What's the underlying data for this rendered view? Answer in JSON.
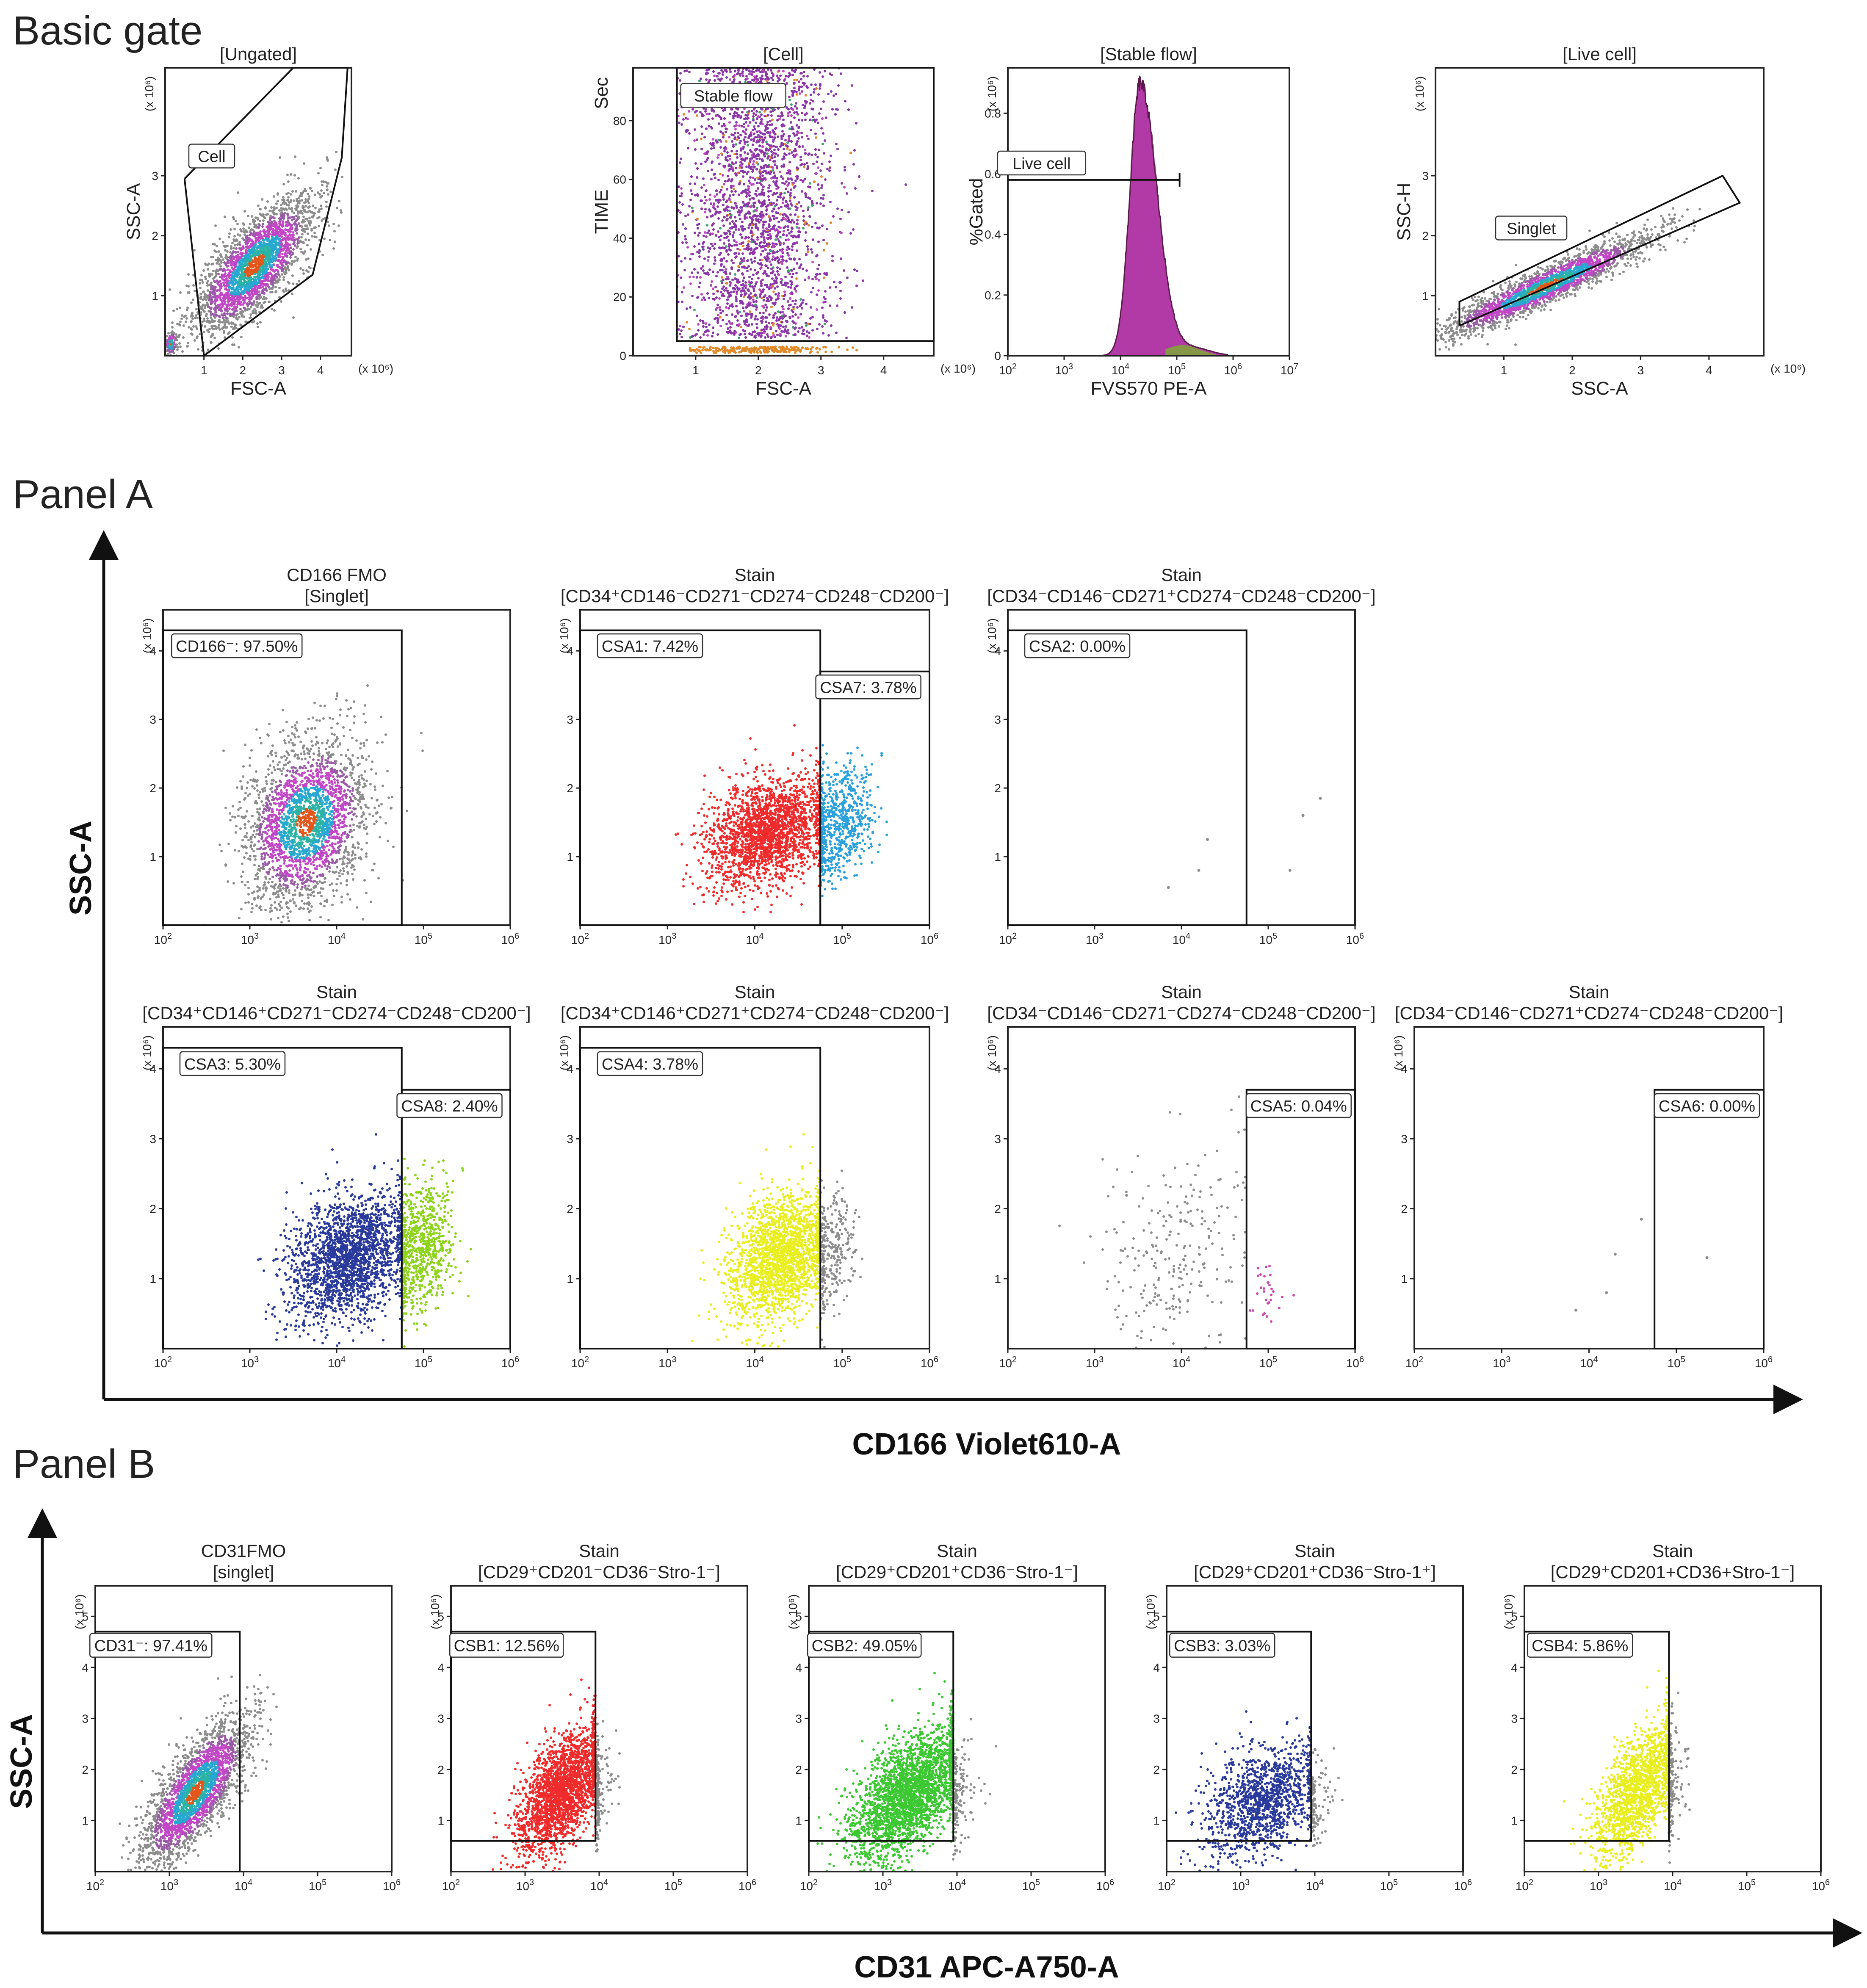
{
  "sections": {
    "basic": "Basic gate",
    "panelA": "Panel A",
    "panelB": "Panel B"
  },
  "axis_labels": {
    "panelA_x": "CD166 Violet610-A",
    "panelA_y": "SSC-A",
    "panelB_x": "CD31 APC-A750-A",
    "panelB_y": "SSC-A"
  },
  "colors": {
    "gray": "#8c8c8c",
    "magenta": "#b13cc0",
    "teal": "#1aa7a0",
    "green": "#40c040",
    "orange": "#e0892a",
    "red": "#f02b2b",
    "blue": "#2aa0dc",
    "navy": "#2a3a9c",
    "lime": "#8cd31a",
    "yellow": "#e9ee1e",
    "pink": "#d045b0",
    "bgreen": "#3cc832",
    "purple": "#8a35a8"
  },
  "chart_data": [
    {
      "id": "ungated",
      "type": "scatter",
      "title": [
        "[Ungated]"
      ],
      "xlabel": "FSC-A",
      "ylabel": "SSC-A",
      "x_scale": "linear",
      "xlim": [
        0,
        4.8
      ],
      "ylim": [
        0,
        4.8
      ],
      "xticks": [
        1,
        2,
        3,
        4
      ],
      "yticks": [
        1,
        2,
        3
      ],
      "xmult": "(x 10⁶)",
      "ymult": "(x 10⁶)",
      "clouds": [
        {
          "cx": 2.3,
          "cy": 1.5,
          "sx": 0.75,
          "sy": 0.55,
          "rho": 0.72,
          "n": 2600,
          "palette": "density"
        },
        {
          "cx": 0.15,
          "cy": 0.2,
          "sx": 0.08,
          "sy": 0.1,
          "rho": 0.2,
          "n": 140,
          "palette": "density"
        }
      ],
      "gates": [
        {
          "kind": "polygon",
          "points": [
            [
              0.5,
              2.95
            ],
            [
              3.3,
              4.8
            ],
            [
              4.7,
              4.8
            ],
            [
              4.55,
              3.3
            ],
            [
              3.8,
              1.35
            ],
            [
              1.0,
              0.0
            ],
            [
              0.5,
              2.95
            ]
          ],
          "label": "Cell",
          "label_at": [
            1.2,
            3.3
          ]
        }
      ]
    },
    {
      "id": "cell",
      "type": "scatter",
      "title": [
        "[Cell]"
      ],
      "xlabel": "FSC-A",
      "ylabel": "TIME",
      "ylabel_unit": "Sec",
      "x_scale": "linear",
      "xlim": [
        0,
        4.8
      ],
      "ylim": [
        0,
        98
      ],
      "xticks": [
        1,
        2,
        3,
        4
      ],
      "yticks": [
        0,
        20,
        40,
        60,
        80
      ],
      "xmult": "(x 10⁶)",
      "clouds": [
        {
          "kind": "band",
          "x0": 0.7,
          "x1": 4.8,
          "ymin": 6,
          "ymax": 98,
          "cx": 2.0,
          "sx": 0.55,
          "n": 3200,
          "palette": "flow"
        },
        {
          "kind": "band",
          "x0": 0.9,
          "x1": 3.3,
          "ymin": 1,
          "ymax": 3,
          "cx": 2.0,
          "sx": 0.6,
          "n": 250,
          "palette": "orange"
        }
      ],
      "gates": [
        {
          "kind": "rect",
          "x0": 0.7,
          "x1": 4.8,
          "y0": 5,
          "y1": 98,
          "label": "Stable flow",
          "label_at": [
            1.6,
            88
          ]
        }
      ]
    },
    {
      "id": "stableflow",
      "type": "histogram",
      "title": [
        "[Stable flow]"
      ],
      "xlabel": "FVS570 PE-A",
      "ylabel": "%Gated",
      "x_scale": "log",
      "xlim": [
        2,
        7
      ],
      "ylim": [
        0,
        0.95
      ],
      "xticks": [
        2,
        3,
        4,
        5,
        6,
        7
      ],
      "yticks": [
        0,
        0.2,
        0.4,
        0.6,
        0.8
      ],
      "ymult": "(x 10⁶)",
      "peak_log": 4.35,
      "peak_height": 0.9,
      "width_left": 0.18,
      "width_right": 0.3,
      "tail_to": 5.6,
      "gates": [
        {
          "kind": "hline",
          "x0": 2,
          "x1": 5.05,
          "y": 0.58,
          "label": "Live cell",
          "label_at": [
            2.6,
            0.63
          ]
        }
      ]
    },
    {
      "id": "livecell",
      "type": "scatter",
      "title": [
        "[Live cell]"
      ],
      "xlabel": "SSC-A",
      "ylabel": "SSC-H",
      "x_scale": "linear",
      "xlim": [
        0,
        4.8
      ],
      "ylim": [
        0,
        4.8
      ],
      "xticks": [
        1,
        2,
        3,
        4
      ],
      "yticks": [
        1,
        2,
        3
      ],
      "xmult": "(x 10⁶)",
      "ymult": "(x 10⁶)",
      "clouds": [
        {
          "cx": 1.6,
          "cy": 1.15,
          "sx": 0.75,
          "sy": 0.42,
          "rho": 0.93,
          "n": 2200,
          "palette": "density"
        }
      ],
      "gates": [
        {
          "kind": "polygon",
          "points": [
            [
              0.35,
              0.5
            ],
            [
              4.45,
              2.55
            ],
            [
              4.2,
              3.0
            ],
            [
              0.35,
              0.9
            ],
            [
              0.35,
              0.5
            ]
          ],
          "label": "Singlet",
          "label_at": [
            1.4,
            2.1
          ]
        }
      ]
    },
    {
      "id": "a1",
      "type": "scatter",
      "title": [
        "CD166 FMO",
        "[Singlet]"
      ],
      "x_scale": "log",
      "xlim": [
        2,
        6
      ],
      "ylim": [
        0,
        4.6
      ],
      "xticks": [
        2,
        3,
        4,
        5,
        6
      ],
      "yticks": [
        1,
        2,
        3,
        4
      ],
      "ymult": "(x 10⁶)",
      "clouds": [
        {
          "cx": 3.65,
          "cy": 1.5,
          "sx": 0.35,
          "sy": 0.6,
          "rho": 0.25,
          "n": 2500,
          "palette": "density"
        }
      ],
      "gates": [
        {
          "kind": "rect",
          "x0": 2,
          "x1": 4.75,
          "y0": 0,
          "y1": 4.3,
          "label": "CD166⁻: 97.50%",
          "label_at": [
            2.85,
            4.05
          ]
        }
      ]
    },
    {
      "id": "a2",
      "type": "scatter",
      "title": [
        "Stain",
        "[CD34⁺CD146⁻CD271⁻CD274⁻CD248⁻CD200⁻]"
      ],
      "x_scale": "log",
      "xlim": [
        2,
        6
      ],
      "ylim": [
        0,
        4.6
      ],
      "xticks": [
        2,
        3,
        4,
        5,
        6
      ],
      "yticks": [
        1,
        2,
        3,
        4
      ],
      "ymult": "(x 10⁶)",
      "clouds": [
        {
          "cx": 4.15,
          "cy": 1.35,
          "sx": 0.35,
          "sy": 0.4,
          "rho": 0.3,
          "n": 2100,
          "palette": "red",
          "xmax": 4.75
        },
        {
          "cx": 4.95,
          "cy": 1.5,
          "sx": 0.2,
          "sy": 0.4,
          "rho": 0.2,
          "n": 700,
          "palette": "blue",
          "xmin": 4.75
        }
      ],
      "gates": [
        {
          "kind": "rect",
          "x0": 2,
          "x1": 4.75,
          "y0": 0,
          "y1": 4.3,
          "label": "CSA1: 7.42%",
          "label_at": [
            2.8,
            4.05
          ]
        },
        {
          "kind": "rect",
          "x0": 4.75,
          "x1": 6,
          "y0": 0,
          "y1": 3.7,
          "label": "CSA7: 3.78%",
          "label_at": [
            5.3,
            3.45
          ]
        }
      ]
    },
    {
      "id": "a3",
      "type": "scatter",
      "title": [
        "Stain",
        "[CD34⁻CD146⁻CD271⁺CD274⁻CD248⁻CD200⁻]"
      ],
      "x_scale": "log",
      "xlim": [
        2,
        6
      ],
      "ylim": [
        0,
        4.6
      ],
      "xticks": [
        2,
        3,
        4,
        5,
        6
      ],
      "yticks": [
        1,
        2,
        3,
        4
      ],
      "ymult": "(x 10⁶)",
      "points": [
        [
          5.6,
          1.85
        ],
        [
          4.3,
          1.25
        ],
        [
          4.2,
          0.8
        ],
        [
          3.85,
          0.55
        ],
        [
          5.25,
          0.8
        ],
        [
          5.4,
          1.6
        ]
      ],
      "gates": [
        {
          "kind": "rect",
          "x0": 2,
          "x1": 4.75,
          "y0": 0,
          "y1": 4.3,
          "label": "CSA2: 0.00%",
          "label_at": [
            2.8,
            4.05
          ]
        }
      ]
    },
    {
      "id": "a4",
      "type": "scatter",
      "title": [
        "Stain",
        "[CD34⁺CD146⁺CD271⁻CD274⁻CD248⁻CD200⁻]"
      ],
      "x_scale": "log",
      "xlim": [
        2,
        6
      ],
      "ylim": [
        0,
        4.6
      ],
      "xticks": [
        2,
        3,
        4,
        5,
        6
      ],
      "yticks": [
        1,
        2,
        3,
        4
      ],
      "ymult": "(x 10⁶)",
      "clouds": [
        {
          "cx": 4.15,
          "cy": 1.3,
          "sx": 0.35,
          "sy": 0.45,
          "rho": 0.3,
          "n": 2100,
          "palette": "navy",
          "xmax": 4.75
        },
        {
          "cx": 4.95,
          "cy": 1.45,
          "sx": 0.2,
          "sy": 0.45,
          "rho": 0.2,
          "n": 800,
          "palette": "lime",
          "xmin": 4.75
        }
      ],
      "gates": [
        {
          "kind": "rect",
          "x0": 2,
          "x1": 4.75,
          "y0": 0,
          "y1": 4.3,
          "label": "CSA3: 5.30%",
          "label_at": [
            2.8,
            4.05
          ]
        },
        {
          "kind": "rect",
          "x0": 4.75,
          "x1": 6,
          "y0": 0,
          "y1": 3.7,
          "label": "CSA8: 2.40%",
          "label_at": [
            5.3,
            3.45
          ]
        }
      ]
    },
    {
      "id": "a5",
      "type": "scatter",
      "title": [
        "Stain",
        "[CD34⁺CD146⁺CD271⁺CD274⁻CD248⁻CD200⁻]"
      ],
      "x_scale": "log",
      "xlim": [
        2,
        6
      ],
      "ylim": [
        0,
        4.6
      ],
      "xticks": [
        2,
        3,
        4,
        5,
        6
      ],
      "yticks": [
        1,
        2,
        3,
        4
      ],
      "ymult": "(x 10⁶)",
      "clouds": [
        {
          "cx": 4.3,
          "cy": 1.3,
          "sx": 0.3,
          "sy": 0.45,
          "rho": 0.3,
          "n": 2000,
          "palette": "yellow",
          "xmax": 4.75
        },
        {
          "cx": 4.85,
          "cy": 1.35,
          "sx": 0.15,
          "sy": 0.4,
          "rho": 0.2,
          "n": 300,
          "palette": "gray",
          "xmin": 4.75
        }
      ],
      "gates": [
        {
          "kind": "rect",
          "x0": 2,
          "x1": 4.75,
          "y0": 0,
          "y1": 4.3,
          "label": "CSA4: 3.78%",
          "label_at": [
            2.8,
            4.05
          ]
        }
      ]
    },
    {
      "id": "a6",
      "type": "scatter",
      "title": [
        "Stain",
        "[CD34⁻CD146⁻CD271⁻CD274⁻CD248⁻CD200⁻]"
      ],
      "x_scale": "log",
      "xlim": [
        2,
        6
      ],
      "ylim": [
        0,
        4.6
      ],
      "xticks": [
        2,
        3,
        4,
        5,
        6
      ],
      "yticks": [
        1,
        2,
        3,
        4
      ],
      "ymult": "(x 10⁶)",
      "clouds": [
        {
          "cx": 3.95,
          "cy": 1.3,
          "sx": 0.45,
          "sy": 0.8,
          "rho": 0.1,
          "n": 260,
          "palette": "gray",
          "xmax": 4.75
        },
        {
          "cx": 5.0,
          "cy": 0.8,
          "sx": 0.12,
          "sy": 0.2,
          "rho": 0.1,
          "n": 30,
          "palette": "pink",
          "xmin": 4.78
        }
      ],
      "gates": [
        {
          "kind": "rect",
          "x0": 4.75,
          "x1": 6,
          "y0": 0,
          "y1": 3.7,
          "label": "CSA5: 0.04%",
          "label_at": [
            5.35,
            3.45
          ]
        }
      ]
    },
    {
      "id": "a7",
      "type": "scatter",
      "title": [
        "Stain",
        "[CD34⁻CD146⁻CD271⁺CD274⁻CD248⁻CD200⁻]"
      ],
      "x_scale": "log",
      "xlim": [
        2,
        6
      ],
      "ylim": [
        0,
        4.6
      ],
      "xticks": [
        2,
        3,
        4,
        5,
        6
      ],
      "yticks": [
        1,
        2,
        3,
        4
      ],
      "ymult": "(x 10⁶)",
      "points": [
        [
          4.6,
          1.85
        ],
        [
          4.3,
          1.35
        ],
        [
          4.2,
          0.8
        ],
        [
          3.85,
          0.55
        ],
        [
          5.35,
          1.3
        ]
      ],
      "gates": [
        {
          "kind": "rect",
          "x0": 4.75,
          "x1": 6,
          "y0": 0,
          "y1": 3.7,
          "label": "CSA6: 0.00%",
          "label_at": [
            5.35,
            3.45
          ]
        }
      ]
    },
    {
      "id": "b1",
      "type": "scatter",
      "title": [
        "CD31FMO",
        "[singlet]"
      ],
      "x_scale": "log",
      "xlim": [
        2,
        6
      ],
      "ylim": [
        0,
        5.6
      ],
      "xticks": [
        2,
        3,
        4,
        5,
        6
      ],
      "yticks": [
        1,
        2,
        3,
        4,
        5
      ],
      "ymult": "(x 10⁶)",
      "clouds": [
        {
          "cx": 3.35,
          "cy": 1.55,
          "sx": 0.35,
          "sy": 0.7,
          "rho": 0.75,
          "n": 2500,
          "palette": "density"
        }
      ],
      "gates": [
        {
          "kind": "rect",
          "x0": 2,
          "x1": 3.95,
          "y0": 0,
          "y1": 4.7,
          "label": "CD31⁻: 97.41%",
          "label_at": [
            2.75,
            4.4
          ]
        }
      ]
    },
    {
      "id": "b2",
      "type": "scatter",
      "title": [
        "Stain",
        "[CD29⁺CD201⁻CD36⁻Stro-1⁻]"
      ],
      "x_scale": "log",
      "xlim": [
        2,
        6
      ],
      "ylim": [
        0,
        5.6
      ],
      "xticks": [
        2,
        3,
        4,
        5,
        6
      ],
      "yticks": [
        1,
        2,
        3,
        4,
        5
      ],
      "ymult": "(x 10⁶)",
      "clouds": [
        {
          "cx": 3.5,
          "cy": 1.55,
          "sx": 0.3,
          "sy": 0.6,
          "rho": 0.55,
          "n": 2200,
          "palette": "red",
          "xmax": 3.95
        },
        {
          "cx": 3.9,
          "cy": 1.6,
          "sx": 0.15,
          "sy": 0.5,
          "rho": 0.3,
          "n": 200,
          "palette": "gray",
          "xmin": 3.95
        }
      ],
      "gates": [
        {
          "kind": "rect",
          "x0": 2,
          "x1": 3.95,
          "y0": 0.6,
          "y1": 4.7,
          "label": "CSB1: 12.56%",
          "label_at": [
            2.75,
            4.4
          ]
        }
      ]
    },
    {
      "id": "b3",
      "type": "scatter",
      "title": [
        "Stain",
        "[CD29⁺CD201⁺CD36⁻Stro-1⁻]"
      ],
      "x_scale": "log",
      "xlim": [
        2,
        6
      ],
      "ylim": [
        0,
        5.6
      ],
      "xticks": [
        2,
        3,
        4,
        5,
        6
      ],
      "yticks": [
        1,
        2,
        3,
        4,
        5
      ],
      "ymult": "(x 10⁶)",
      "clouds": [
        {
          "cx": 3.35,
          "cy": 1.5,
          "sx": 0.4,
          "sy": 0.65,
          "rho": 0.55,
          "n": 2800,
          "palette": "bgreen",
          "xmax": 3.95
        },
        {
          "cx": 3.95,
          "cy": 1.5,
          "sx": 0.15,
          "sy": 0.5,
          "rho": 0.3,
          "n": 180,
          "palette": "gray",
          "xmin": 3.95
        }
      ],
      "gates": [
        {
          "kind": "rect",
          "x0": 2,
          "x1": 3.95,
          "y0": 0.6,
          "y1": 4.7,
          "label": "CSB2: 49.05%",
          "label_at": [
            2.75,
            4.4
          ]
        }
      ]
    },
    {
      "id": "b4",
      "type": "scatter",
      "title": [
        "Stain",
        "[CD29⁺CD201⁺CD36⁻Stro-1⁺]"
      ],
      "x_scale": "log",
      "xlim": [
        2,
        6
      ],
      "ylim": [
        0,
        5.6
      ],
      "xticks": [
        2,
        3,
        4,
        5,
        6
      ],
      "yticks": [
        1,
        2,
        3,
        4,
        5
      ],
      "ymult": "(x 10⁶)",
      "clouds": [
        {
          "cx": 3.3,
          "cy": 1.35,
          "sx": 0.4,
          "sy": 0.55,
          "rho": 0.4,
          "n": 1300,
          "palette": "navy",
          "xmax": 3.95
        },
        {
          "cx": 3.95,
          "cy": 1.4,
          "sx": 0.15,
          "sy": 0.4,
          "rho": 0.2,
          "n": 120,
          "palette": "gray",
          "xmin": 3.95
        }
      ],
      "gates": [
        {
          "kind": "rect",
          "x0": 2,
          "x1": 3.95,
          "y0": 0.6,
          "y1": 4.7,
          "label": "CSB3: 3.03%",
          "label_at": [
            2.75,
            4.4
          ]
        }
      ]
    },
    {
      "id": "b5",
      "type": "scatter",
      "title": [
        "Stain",
        "[CD29⁺CD201+CD36+Stro-1⁻]"
      ],
      "x_scale": "log",
      "xlim": [
        2,
        6
      ],
      "ylim": [
        0,
        5.6
      ],
      "xticks": [
        2,
        3,
        4,
        5,
        6
      ],
      "yticks": [
        1,
        2,
        3,
        4,
        5
      ],
      "ymult": "(x 10⁶)",
      "clouds": [
        {
          "cx": 3.55,
          "cy": 1.6,
          "sx": 0.3,
          "sy": 0.65,
          "rho": 0.6,
          "n": 1600,
          "palette": "yellow",
          "xmax": 3.95
        },
        {
          "cx": 3.95,
          "cy": 1.8,
          "sx": 0.15,
          "sy": 0.6,
          "rho": 0.3,
          "n": 160,
          "palette": "gray",
          "xmin": 3.95
        }
      ],
      "gates": [
        {
          "kind": "rect",
          "x0": 2,
          "x1": 3.95,
          "y0": 0.6,
          "y1": 4.7,
          "label": "CSB4: 5.86%",
          "label_at": [
            2.75,
            4.4
          ]
        }
      ]
    }
  ]
}
